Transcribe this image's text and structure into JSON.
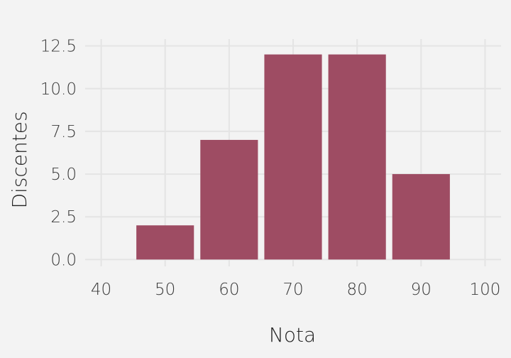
{
  "chart_data": {
    "type": "bar",
    "x_centers": [
      50,
      60,
      70,
      80,
      90
    ],
    "values": [
      2,
      7,
      12,
      12,
      5
    ],
    "bin_width": 10,
    "xlabel": "Nota",
    "ylabel": "Discentes",
    "xlim": [
      37.5,
      102.5
    ],
    "ylim": [
      -0.4,
      12.9
    ],
    "x_ticks": [
      40,
      50,
      60,
      70,
      80,
      90,
      100
    ],
    "x_tick_labels": [
      "40",
      "50",
      "60",
      "70",
      "80",
      "90",
      "100"
    ],
    "y_ticks": [
      0,
      2.5,
      5,
      7.5,
      10,
      12.5
    ],
    "y_tick_labels": [
      "0.0",
      "2.5",
      "5.0",
      "7.5",
      "10.0",
      "12.5"
    ],
    "grid": true,
    "bar_color": "#9e4c63",
    "background": "#f3f3f3"
  }
}
